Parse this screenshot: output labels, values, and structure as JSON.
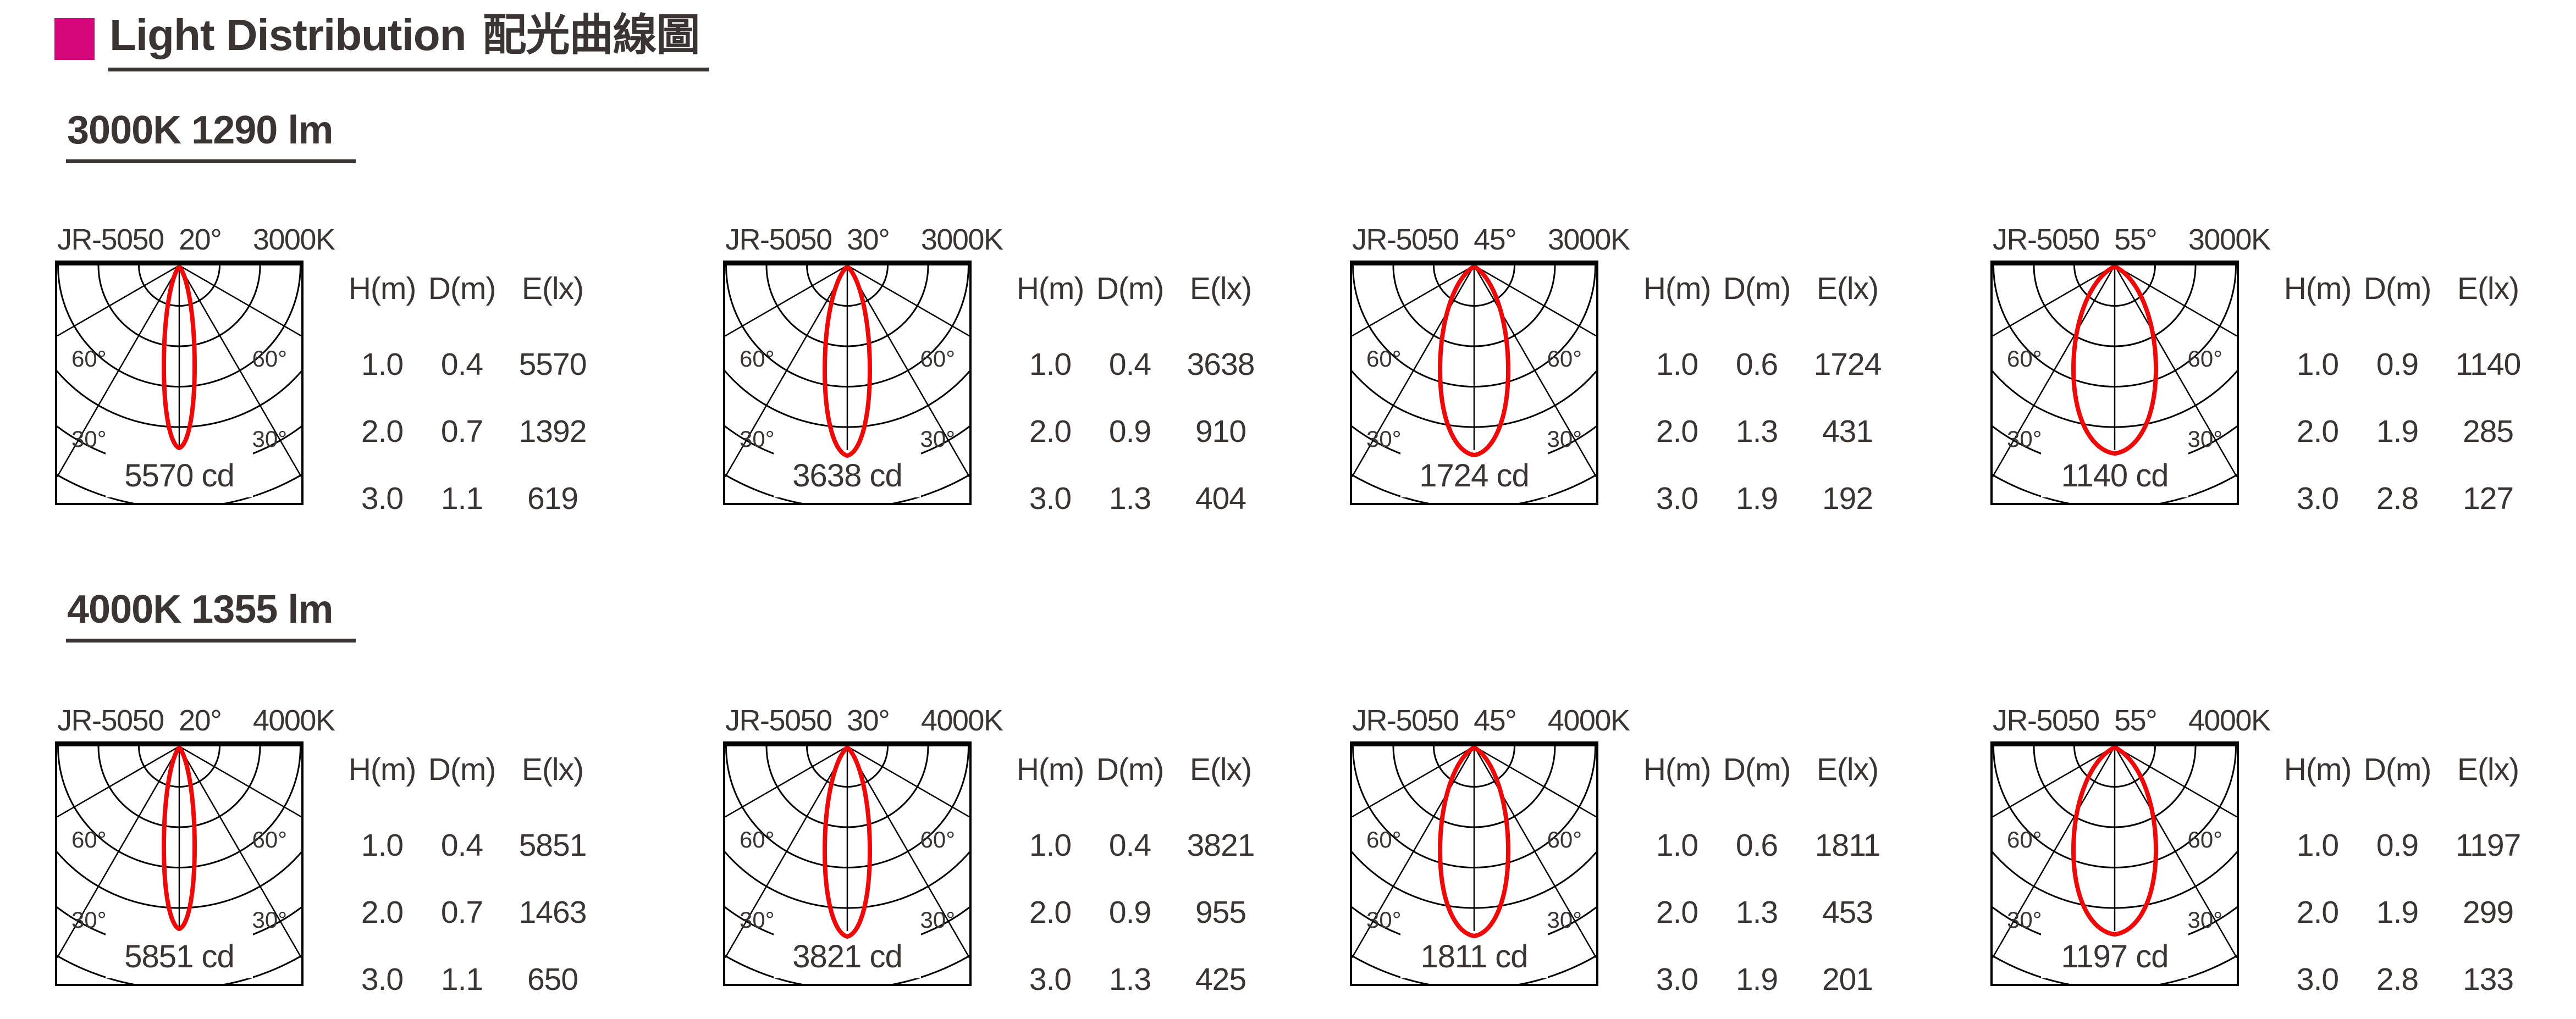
{
  "page": {
    "title_en": "Light Distribution",
    "title_zh": "配光曲線圖",
    "accent_color": "#d4087c",
    "text_color": "#3a3433",
    "curve_color": "#ee0808"
  },
  "table_headers": {
    "h": "H(m)",
    "d": "D(m)",
    "e": "E(lx)"
  },
  "diagram_labels": {
    "deg60": "60°",
    "deg30": "30°"
  },
  "sections": [
    {
      "heading": "3000K 1290 lm",
      "units": [
        {
          "model": "JR-5050",
          "angle": "20°",
          "cct": "3000K",
          "cd": "5570 cd",
          "rows": [
            [
              "1.0",
              "0.4",
              "5570"
            ],
            [
              "2.0",
              "0.7",
              "1392"
            ],
            [
              "3.0",
              "1.1",
              "619"
            ]
          ]
        },
        {
          "model": "JR-5050",
          "angle": "30°",
          "cct": "3000K",
          "cd": "3638 cd",
          "rows": [
            [
              "1.0",
              "0.4",
              "3638"
            ],
            [
              "2.0",
              "0.9",
              "910"
            ],
            [
              "3.0",
              "1.3",
              "404"
            ]
          ]
        },
        {
          "model": "JR-5050",
          "angle": "45°",
          "cct": "3000K",
          "cd": "1724 cd",
          "rows": [
            [
              "1.0",
              "0.6",
              "1724"
            ],
            [
              "2.0",
              "1.3",
              "431"
            ],
            [
              "3.0",
              "1.9",
              "192"
            ]
          ]
        },
        {
          "model": "JR-5050",
          "angle": "55°",
          "cct": "3000K",
          "cd": "1140 cd",
          "rows": [
            [
              "1.0",
              "0.9",
              "1140"
            ],
            [
              "2.0",
              "1.9",
              "285"
            ],
            [
              "3.0",
              "2.8",
              "127"
            ]
          ]
        }
      ]
    },
    {
      "heading": "4000K 1355 lm",
      "units": [
        {
          "model": "JR-5050",
          "angle": "20°",
          "cct": "4000K",
          "cd": "5851 cd",
          "rows": [
            [
              "1.0",
              "0.4",
              "5851"
            ],
            [
              "2.0",
              "0.7",
              "1463"
            ],
            [
              "3.0",
              "1.1",
              "650"
            ]
          ]
        },
        {
          "model": "JR-5050",
          "angle": "30°",
          "cct": "4000K",
          "cd": "3821 cd",
          "rows": [
            [
              "1.0",
              "0.4",
              "3821"
            ],
            [
              "2.0",
              "0.9",
              "955"
            ],
            [
              "3.0",
              "1.3",
              "425"
            ]
          ]
        },
        {
          "model": "JR-5050",
          "angle": "45°",
          "cct": "4000K",
          "cd": "1811 cd",
          "rows": [
            [
              "1.0",
              "0.6",
              "1811"
            ],
            [
              "2.0",
              "1.3",
              "453"
            ],
            [
              "3.0",
              "1.9",
              "201"
            ]
          ]
        },
        {
          "model": "JR-5050",
          "angle": "55°",
          "cct": "4000K",
          "cd": "1197 cd",
          "rows": [
            [
              "1.0",
              "0.9",
              "1197"
            ],
            [
              "2.0",
              "1.9",
              "299"
            ],
            [
              "3.0",
              "2.8",
              "133"
            ]
          ]
        }
      ]
    }
  ],
  "chart_data": [
    {
      "type": "polar",
      "title": "JR-5050 20° 3000K",
      "beam_angle_deg": 20,
      "cct": "3000K",
      "luminous_flux_lm": 1290,
      "peak_intensity_cd": 5570,
      "angle_grid_deg": [
        0,
        30,
        60
      ],
      "illuminance_table": {
        "headers": [
          "H(m)",
          "D(m)",
          "E(lx)"
        ],
        "rows": [
          [
            1.0,
            0.4,
            5570
          ],
          [
            2.0,
            0.7,
            1392
          ],
          [
            3.0,
            1.1,
            619
          ]
        ]
      }
    },
    {
      "type": "polar",
      "title": "JR-5050 30° 3000K",
      "beam_angle_deg": 30,
      "cct": "3000K",
      "luminous_flux_lm": 1290,
      "peak_intensity_cd": 3638,
      "angle_grid_deg": [
        0,
        30,
        60
      ],
      "illuminance_table": {
        "headers": [
          "H(m)",
          "D(m)",
          "E(lx)"
        ],
        "rows": [
          [
            1.0,
            0.4,
            3638
          ],
          [
            2.0,
            0.9,
            910
          ],
          [
            3.0,
            1.3,
            404
          ]
        ]
      }
    },
    {
      "type": "polar",
      "title": "JR-5050 45° 3000K",
      "beam_angle_deg": 45,
      "cct": "3000K",
      "luminous_flux_lm": 1290,
      "peak_intensity_cd": 1724,
      "angle_grid_deg": [
        0,
        30,
        60
      ],
      "illuminance_table": {
        "headers": [
          "H(m)",
          "D(m)",
          "E(lx)"
        ],
        "rows": [
          [
            1.0,
            0.6,
            1724
          ],
          [
            2.0,
            1.3,
            431
          ],
          [
            3.0,
            1.9,
            192
          ]
        ]
      }
    },
    {
      "type": "polar",
      "title": "JR-5050 55° 3000K",
      "beam_angle_deg": 55,
      "cct": "3000K",
      "luminous_flux_lm": 1290,
      "peak_intensity_cd": 1140,
      "angle_grid_deg": [
        0,
        30,
        60
      ],
      "illuminance_table": {
        "headers": [
          "H(m)",
          "D(m)",
          "E(lx)"
        ],
        "rows": [
          [
            1.0,
            0.9,
            1140
          ],
          [
            2.0,
            1.9,
            285
          ],
          [
            3.0,
            2.8,
            127
          ]
        ]
      }
    },
    {
      "type": "polar",
      "title": "JR-5050 20° 4000K",
      "beam_angle_deg": 20,
      "cct": "4000K",
      "luminous_flux_lm": 1355,
      "peak_intensity_cd": 5851,
      "angle_grid_deg": [
        0,
        30,
        60
      ],
      "illuminance_table": {
        "headers": [
          "H(m)",
          "D(m)",
          "E(lx)"
        ],
        "rows": [
          [
            1.0,
            0.4,
            5851
          ],
          [
            2.0,
            0.7,
            1463
          ],
          [
            3.0,
            1.1,
            650
          ]
        ]
      }
    },
    {
      "type": "polar",
      "title": "JR-5050 30° 4000K",
      "beam_angle_deg": 30,
      "cct": "4000K",
      "luminous_flux_lm": 1355,
      "peak_intensity_cd": 3821,
      "angle_grid_deg": [
        0,
        30,
        60
      ],
      "illuminance_table": {
        "headers": [
          "H(m)",
          "D(m)",
          "E(lx)"
        ],
        "rows": [
          [
            1.0,
            0.4,
            3821
          ],
          [
            2.0,
            0.9,
            955
          ],
          [
            3.0,
            1.3,
            425
          ]
        ]
      }
    },
    {
      "type": "polar",
      "title": "JR-5050 45° 4000K",
      "beam_angle_deg": 45,
      "cct": "4000K",
      "luminous_flux_lm": 1355,
      "peak_intensity_cd": 1811,
      "angle_grid_deg": [
        0,
        30,
        60
      ],
      "illuminance_table": {
        "headers": [
          "H(m)",
          "D(m)",
          "E(lx)"
        ],
        "rows": [
          [
            1.0,
            0.6,
            1811
          ],
          [
            2.0,
            1.3,
            453
          ],
          [
            3.0,
            1.9,
            201
          ]
        ]
      }
    },
    {
      "type": "polar",
      "title": "JR-5050 55° 4000K",
      "beam_angle_deg": 55,
      "cct": "4000K",
      "luminous_flux_lm": 1355,
      "peak_intensity_cd": 1197,
      "angle_grid_deg": [
        0,
        30,
        60
      ],
      "illuminance_table": {
        "headers": [
          "H(m)",
          "D(m)",
          "E(lx)"
        ],
        "rows": [
          [
            1.0,
            0.9,
            1197
          ],
          [
            2.0,
            1.9,
            299
          ],
          [
            3.0,
            2.8,
            133
          ]
        ]
      }
    }
  ]
}
